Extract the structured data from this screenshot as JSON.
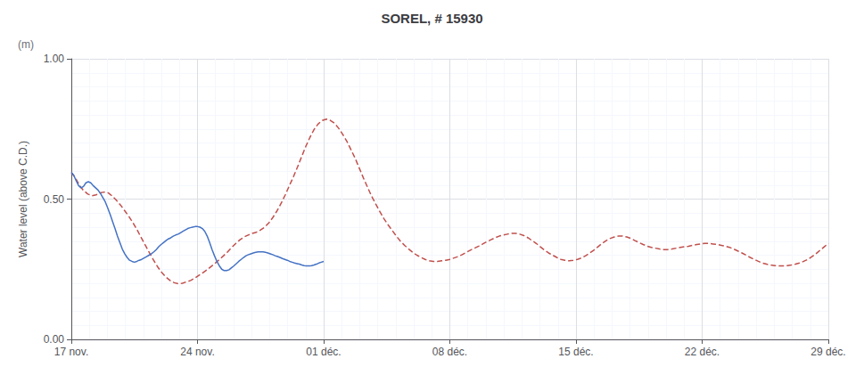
{
  "chart_data": {
    "type": "line",
    "title": "SOREL, # 15930",
    "ylabel": "Water level (above C.D.)",
    "annotations": [
      "(m)"
    ],
    "xlim": [
      0,
      42
    ],
    "xticks": [
      {
        "value": 0,
        "label": "17 nov."
      },
      {
        "value": 7,
        "label": "24 nov."
      },
      {
        "value": 14,
        "label": "01 déc."
      },
      {
        "value": 21,
        "label": "08 déc."
      },
      {
        "value": 28,
        "label": "15 déc."
      },
      {
        "value": 35,
        "label": "22 déc."
      },
      {
        "value": 42,
        "label": "29 déc."
      }
    ],
    "ylim": [
      0.0,
      1.0
    ],
    "yticks": [
      {
        "value": 0.0,
        "label": "0.00"
      },
      {
        "value": 0.5,
        "label": "0.50"
      },
      {
        "value": 1.0,
        "label": "1.00"
      }
    ],
    "grid": true,
    "series": [
      {
        "color": "#c0504d",
        "line_style": "dashed",
        "x": [
          0,
          0.2283,
          0.4565,
          0.6848,
          0.913,
          1.1413,
          1.3696,
          1.5978,
          1.8261,
          2.0543,
          2.2826,
          2.5109,
          2.7391,
          2.9674,
          3.1957,
          3.4239,
          3.6522,
          3.8804,
          4.1087,
          4.337,
          4.5652,
          4.7935,
          5.0217,
          5.25,
          5.4783,
          5.7065,
          5.9348,
          6.163,
          6.3913,
          6.6196,
          6.8478,
          7.0761,
          7.3043,
          7.5326,
          7.7609,
          7.9891,
          8.2174,
          8.4457,
          8.6739,
          8.9022,
          9.1304,
          9.3587,
          9.587,
          9.8152,
          10.0435,
          10.2717,
          10.5,
          10.7283,
          10.9565,
          11.1848,
          11.413,
          11.6413,
          11.8696,
          12.0978,
          12.3261,
          12.5543,
          12.7826,
          13.0109,
          13.2391,
          13.4674,
          13.6957,
          13.9239,
          14.1522,
          14.3804,
          14.6087,
          14.837,
          15.0652,
          15.2935,
          15.5217,
          15.75,
          15.9783,
          16.2065,
          16.4348,
          16.663,
          16.8913,
          17.1196,
          17.3478,
          17.5761,
          17.8043,
          18.0326,
          18.2609,
          18.4891,
          18.7174,
          18.9457,
          19.1739,
          19.4022,
          19.6304,
          19.8587,
          20.087,
          20.3152,
          20.5435,
          20.7717,
          21,
          21.2283,
          21.4565,
          21.6848,
          21.913,
          22.1413,
          22.3696,
          22.5978,
          22.8261,
          23.0543,
          23.2826,
          23.5109,
          23.7391,
          23.9674,
          24.1957,
          24.4239,
          24.6522,
          24.8804,
          25.1087,
          25.337,
          25.5652,
          25.7935,
          26.0217,
          26.25,
          26.4783,
          26.7065,
          26.9348,
          27.163,
          27.3913,
          27.6196,
          27.8478,
          28.0761,
          28.3043,
          28.5326,
          28.7609,
          28.9891,
          29.2174,
          29.4457,
          29.6739,
          29.9022,
          30.1304,
          30.3587,
          30.587,
          30.8152,
          31.0435,
          31.2717,
          31.5,
          31.7283,
          31.9565,
          32.1848,
          32.413,
          32.6413,
          32.8696,
          33.0978,
          33.3261,
          33.5543,
          33.7826,
          34.0109,
          34.2391,
          34.4674,
          34.6957,
          34.9239,
          35.1522,
          35.3804,
          35.6087,
          35.837,
          36.0652,
          36.2935,
          36.5217,
          36.75,
          36.9783,
          37.2065,
          37.4348,
          37.663,
          37.8913,
          38.1196,
          38.3478,
          38.5761,
          38.8043,
          39.0326,
          39.2609,
          39.4891,
          39.7174,
          39.9457,
          40.1739,
          40.4022,
          40.6304,
          40.8587,
          41.087,
          41.3152,
          41.5435,
          41.7717,
          42
        ],
        "values": [
          0.595,
          0.575,
          0.548,
          0.53,
          0.518,
          0.512,
          0.515,
          0.522,
          0.525,
          0.522,
          0.51,
          0.495,
          0.478,
          0.458,
          0.438,
          0.415,
          0.39,
          0.362,
          0.335,
          0.308,
          0.282,
          0.258,
          0.238,
          0.222,
          0.21,
          0.202,
          0.198,
          0.2,
          0.205,
          0.21,
          0.218,
          0.228,
          0.238,
          0.248,
          0.26,
          0.272,
          0.285,
          0.298,
          0.312,
          0.328,
          0.342,
          0.355,
          0.365,
          0.372,
          0.378,
          0.382,
          0.39,
          0.4,
          0.415,
          0.435,
          0.458,
          0.485,
          0.515,
          0.548,
          0.58,
          0.615,
          0.652,
          0.688,
          0.72,
          0.748,
          0.768,
          0.78,
          0.785,
          0.78,
          0.77,
          0.752,
          0.73,
          0.705,
          0.675,
          0.645,
          0.61,
          0.575,
          0.542,
          0.51,
          0.482,
          0.455,
          0.43,
          0.408,
          0.388,
          0.368,
          0.35,
          0.335,
          0.322,
          0.31,
          0.3,
          0.292,
          0.285,
          0.28,
          0.278,
          0.278,
          0.28,
          0.282,
          0.285,
          0.29,
          0.295,
          0.302,
          0.31,
          0.318,
          0.325,
          0.332,
          0.34,
          0.348,
          0.355,
          0.362,
          0.368,
          0.372,
          0.375,
          0.378,
          0.378,
          0.375,
          0.37,
          0.362,
          0.352,
          0.342,
          0.33,
          0.318,
          0.308,
          0.3,
          0.292,
          0.285,
          0.282,
          0.28,
          0.282,
          0.285,
          0.29,
          0.298,
          0.308,
          0.318,
          0.33,
          0.342,
          0.352,
          0.36,
          0.365,
          0.368,
          0.368,
          0.365,
          0.36,
          0.352,
          0.345,
          0.338,
          0.332,
          0.328,
          0.325,
          0.322,
          0.32,
          0.32,
          0.322,
          0.325,
          0.328,
          0.33,
          0.332,
          0.335,
          0.338,
          0.34,
          0.342,
          0.342,
          0.34,
          0.338,
          0.335,
          0.332,
          0.328,
          0.322,
          0.315,
          0.308,
          0.3,
          0.292,
          0.285,
          0.278,
          0.272,
          0.268,
          0.265,
          0.263,
          0.262,
          0.262,
          0.263,
          0.265,
          0.268,
          0.272,
          0.278,
          0.285,
          0.295,
          0.305,
          0.318,
          0.33,
          0.342
        ]
      },
      {
        "color": "#4472c4",
        "line_style": "solid",
        "x": [
          0,
          0.1346,
          0.2692,
          0.4038,
          0.5385,
          0.6731,
          0.8077,
          0.9423,
          1.0769,
          1.2115,
          1.3462,
          1.4808,
          1.6154,
          1.75,
          1.8846,
          2.0192,
          2.1538,
          2.2885,
          2.4231,
          2.5577,
          2.6923,
          2.8269,
          2.9615,
          3.0962,
          3.2308,
          3.3654,
          3.5,
          3.6346,
          3.7692,
          3.9038,
          4.0385,
          4.1731,
          4.3077,
          4.4423,
          4.5769,
          4.7115,
          4.8462,
          4.9808,
          5.1154,
          5.25,
          5.3846,
          5.5192,
          5.6538,
          5.7885,
          5.9231,
          6.0577,
          6.1923,
          6.3269,
          6.4615,
          6.5962,
          6.7308,
          6.8654,
          7,
          7.1346,
          7.2692,
          7.4038,
          7.5385,
          7.6731,
          7.8077,
          7.9423,
          8.0769,
          8.2115,
          8.3462,
          8.4808,
          8.6154,
          8.75,
          8.8846,
          9.0192,
          9.1538,
          9.2885,
          9.4231,
          9.5577,
          9.6923,
          9.8269,
          9.9615,
          10.0962,
          10.2308,
          10.3654,
          10.5,
          10.6346,
          10.7692,
          10.9038,
          11.0385,
          11.1731,
          11.3077,
          11.4423,
          11.5769,
          11.7115,
          11.8462,
          11.9808,
          12.1154,
          12.25,
          12.3846,
          12.5192,
          12.6538,
          12.7885,
          12.9231,
          13.0577,
          13.1923,
          13.3269,
          13.4615,
          13.5962,
          13.7308,
          13.8654,
          14
        ],
        "values": [
          0.595,
          0.585,
          0.565,
          0.548,
          0.54,
          0.545,
          0.558,
          0.562,
          0.558,
          0.548,
          0.54,
          0.532,
          0.52,
          0.505,
          0.49,
          0.468,
          0.445,
          0.42,
          0.395,
          0.368,
          0.345,
          0.322,
          0.305,
          0.292,
          0.282,
          0.278,
          0.275,
          0.278,
          0.282,
          0.285,
          0.29,
          0.295,
          0.3,
          0.305,
          0.312,
          0.32,
          0.33,
          0.338,
          0.345,
          0.352,
          0.358,
          0.362,
          0.368,
          0.372,
          0.375,
          0.38,
          0.385,
          0.39,
          0.395,
          0.398,
          0.4,
          0.402,
          0.402,
          0.4,
          0.395,
          0.385,
          0.368,
          0.345,
          0.32,
          0.298,
          0.278,
          0.262,
          0.25,
          0.245,
          0.245,
          0.248,
          0.255,
          0.262,
          0.27,
          0.278,
          0.285,
          0.292,
          0.298,
          0.302,
          0.305,
          0.308,
          0.31,
          0.312,
          0.312,
          0.312,
          0.31,
          0.308,
          0.305,
          0.302,
          0.298,
          0.295,
          0.292,
          0.288,
          0.285,
          0.282,
          0.278,
          0.275,
          0.272,
          0.27,
          0.268,
          0.265,
          0.263,
          0.262,
          0.262,
          0.263,
          0.265,
          0.268,
          0.272,
          0.275,
          0.278
        ]
      }
    ]
  }
}
